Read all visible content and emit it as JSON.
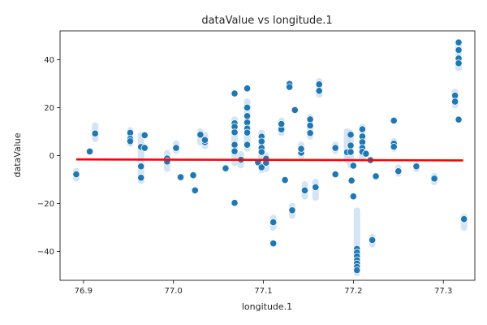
{
  "chart_data": {
    "type": "scatter",
    "title": "dataValue vs longitude.1",
    "xlabel": "longitude.1",
    "ylabel": "dataValue",
    "xlim": [
      76.874,
      77.335
    ],
    "ylim": [
      -52,
      52
    ],
    "xticks": [
      76.9,
      77.0,
      77.1,
      77.2,
      77.3
    ],
    "xtick_labels": [
      "76.9",
      "77.0",
      "77.1",
      "77.2",
      "77.3"
    ],
    "yticks": [
      -40,
      -20,
      0,
      20,
      40
    ],
    "ytick_labels": [
      "−40",
      "−20",
      "0",
      "20",
      "40"
    ],
    "grid": false,
    "legend": "none",
    "colors": {
      "points": "#1f77b4",
      "halo": "#c6dbef",
      "regression": "#ff0000"
    },
    "regression_line": {
      "x": [
        76.892,
        77.322
      ],
      "y": [
        -1.6,
        -2.0
      ]
    },
    "points": [
      [
        76.892,
        -7.8
      ],
      [
        76.907,
        1.7
      ],
      [
        76.913,
        9.2
      ],
      [
        76.952,
        9.5
      ],
      [
        76.952,
        7.0
      ],
      [
        76.952,
        6.0
      ],
      [
        76.964,
        -4.5
      ],
      [
        76.964,
        -9.2
      ],
      [
        76.964,
        3.6
      ],
      [
        76.968,
        8.5
      ],
      [
        76.968,
        3.2
      ],
      [
        76.993,
        -1.2
      ],
      [
        76.993,
        -2.5
      ],
      [
        77.003,
        3.2
      ],
      [
        77.008,
        -9.0
      ],
      [
        77.022,
        -8.2
      ],
      [
        77.024,
        -14.5
      ],
      [
        77.03,
        8.7
      ],
      [
        77.035,
        5.6
      ],
      [
        77.035,
        6.5
      ],
      [
        77.058,
        -5.3
      ],
      [
        77.068,
        25.9
      ],
      [
        77.068,
        13.5
      ],
      [
        77.068,
        12.0
      ],
      [
        77.068,
        9.7
      ],
      [
        77.068,
        4.5
      ],
      [
        77.068,
        1.8
      ],
      [
        77.068,
        -19.7
      ],
      [
        77.075,
        -1.7
      ],
      [
        77.082,
        28.0
      ],
      [
        77.082,
        20.0
      ],
      [
        77.082,
        16.5
      ],
      [
        77.082,
        13.8
      ],
      [
        77.082,
        11.3
      ],
      [
        77.082,
        9.6
      ],
      [
        77.082,
        4.5
      ],
      [
        77.094,
        -2.8
      ],
      [
        77.098,
        7.9
      ],
      [
        77.098,
        5.9
      ],
      [
        77.098,
        3.2
      ],
      [
        77.098,
        1.5
      ],
      [
        77.098,
        -4.9
      ],
      [
        77.103,
        -1.3
      ],
      [
        77.103,
        -3.0
      ],
      [
        77.111,
        -27.8
      ],
      [
        77.111,
        -36.6
      ],
      [
        77.12,
        10.9
      ],
      [
        77.12,
        13.2
      ],
      [
        77.124,
        -10.2
      ],
      [
        77.129,
        29.9
      ],
      [
        77.129,
        28.6
      ],
      [
        77.132,
        -22.8
      ],
      [
        77.135,
        19.0
      ],
      [
        77.142,
        1.2
      ],
      [
        77.142,
        2.8
      ],
      [
        77.146,
        -14.5
      ],
      [
        77.152,
        15.1
      ],
      [
        77.152,
        12.5
      ],
      [
        77.152,
        9.4
      ],
      [
        77.158,
        -13.2
      ],
      [
        77.162,
        29.7
      ],
      [
        77.162,
        27.0
      ],
      [
        77.18,
        3.2
      ],
      [
        77.18,
        -7.8
      ],
      [
        77.193,
        1.4
      ],
      [
        77.197,
        8.7
      ],
      [
        77.197,
        4.2
      ],
      [
        77.197,
        1.5
      ],
      [
        77.198,
        -10.4
      ],
      [
        77.2,
        -4.2
      ],
      [
        77.2,
        -17.0
      ],
      [
        77.204,
        -38.9
      ],
      [
        77.204,
        -40.4
      ],
      [
        77.204,
        -42.0
      ],
      [
        77.204,
        -43.6
      ],
      [
        77.204,
        -45.0
      ],
      [
        77.204,
        -46.4
      ],
      [
        77.204,
        -47.8
      ],
      [
        77.21,
        11.0
      ],
      [
        77.21,
        8.0
      ],
      [
        77.21,
        5.6
      ],
      [
        77.21,
        3.2
      ],
      [
        77.21,
        1.6
      ],
      [
        77.214,
        0.8
      ],
      [
        77.219,
        -1.9
      ],
      [
        77.221,
        -35.2
      ],
      [
        77.225,
        -8.6
      ],
      [
        77.245,
        14.6
      ],
      [
        77.245,
        5.0
      ],
      [
        77.245,
        3.7
      ],
      [
        77.25,
        -6.5
      ],
      [
        77.27,
        -4.5
      ],
      [
        77.29,
        -9.6
      ],
      [
        77.313,
        25.0
      ],
      [
        77.313,
        22.5
      ],
      [
        77.317,
        47.2
      ],
      [
        77.317,
        44.0
      ],
      [
        77.317,
        40.5
      ],
      [
        77.317,
        38.5
      ],
      [
        77.317,
        15.0
      ],
      [
        77.323,
        -26.5
      ]
    ],
    "halo_columns": [
      [
        76.892,
        -9.5,
        -6.5
      ],
      [
        76.913,
        7.0,
        12.5
      ],
      [
        76.952,
        5.0,
        10.5
      ],
      [
        76.964,
        -10.5,
        8.5
      ],
      [
        76.993,
        -5.5,
        1.0
      ],
      [
        77.003,
        2.0,
        5.0
      ],
      [
        77.03,
        5.5,
        10.0
      ],
      [
        77.035,
        4.0,
        8.5
      ],
      [
        77.068,
        -3.0,
        15.0
      ],
      [
        77.075,
        -4.0,
        0.5
      ],
      [
        77.082,
        3.0,
        22.5
      ],
      [
        77.098,
        -6.0,
        9.5
      ],
      [
        77.103,
        -5.5,
        0.0
      ],
      [
        77.111,
        -30.0,
        -26.0
      ],
      [
        77.12,
        9.5,
        14.5
      ],
      [
        77.132,
        -25.0,
        -21.0
      ],
      [
        77.142,
        0.0,
        4.5
      ],
      [
        77.146,
        -17.0,
        -12.0
      ],
      [
        77.152,
        8.0,
        16.0
      ],
      [
        77.158,
        -17.5,
        -11.0
      ],
      [
        77.162,
        25.5,
        31.0
      ],
      [
        77.18,
        2.0,
        4.5
      ],
      [
        77.193,
        -2.0,
        10.0
      ],
      [
        77.197,
        -4.0,
        9.5
      ],
      [
        77.204,
        -49.0,
        -23.0
      ],
      [
        77.21,
        -1.5,
        12.0
      ],
      [
        77.221,
        -37.0,
        -34.0
      ],
      [
        77.245,
        3.0,
        6.0
      ],
      [
        77.25,
        -7.5,
        -5.0
      ],
      [
        77.27,
        -5.5,
        -3.5
      ],
      [
        77.29,
        -11.0,
        -8.5
      ],
      [
        77.313,
        21.0,
        26.5
      ],
      [
        77.317,
        36.5,
        46.0
      ],
      [
        77.323,
        -30.0,
        -25.5
      ]
    ]
  }
}
